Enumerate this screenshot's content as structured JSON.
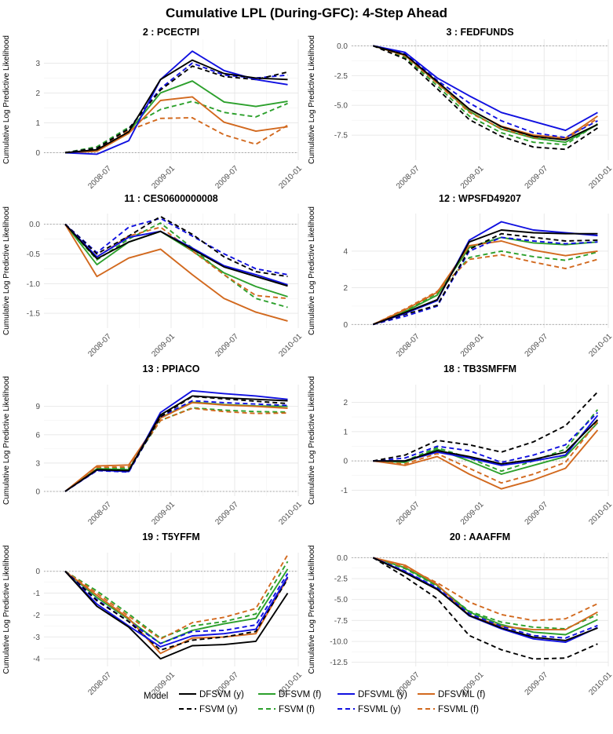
{
  "figure_title": "Cumulative LPL (During-GFC): 4-Step Ahead",
  "legend": {
    "title": "Model",
    "entries": [
      {
        "name": "DFSVM (y)",
        "color": "#000000",
        "dash": "solid"
      },
      {
        "name": "FSVM (y)",
        "color": "#000000",
        "dash": "dashed"
      },
      {
        "name": "DFSVM (f)",
        "color": "#2ca02c",
        "dash": "solid"
      },
      {
        "name": "FSVM (f)",
        "color": "#2ca02c",
        "dash": "dashed"
      },
      {
        "name": "DFSVML (y)",
        "color": "#1010e0",
        "dash": "solid"
      },
      {
        "name": "FSVML (y)",
        "color": "#1010e0",
        "dash": "dashed"
      },
      {
        "name": "DFSVML (f)",
        "color": "#d2691e",
        "dash": "solid"
      },
      {
        "name": "FSVML (f)",
        "color": "#d2691e",
        "dash": "dashed"
      }
    ]
  },
  "chart_data": [
    {
      "type": "line",
      "title": "2 : PCECTPI",
      "ylabel": "Cumulative Log Predictive Likelihood",
      "xlabel": "",
      "x": [
        "2008-03",
        "2008-06",
        "2008-09",
        "2008-12",
        "2009-03",
        "2009-06",
        "2009-09",
        "2009-12"
      ],
      "xticks": [
        "2008-07",
        "2009-01",
        "2009-07",
        "2010-01"
      ],
      "ylim": [
        -0.25,
        3.8
      ],
      "yticks": [
        0,
        1,
        2,
        3
      ],
      "series": [
        {
          "name": "DFSVM (y)",
          "values": [
            0,
            0.1,
            0.7,
            2.45,
            3.1,
            2.65,
            2.5,
            2.45
          ]
        },
        {
          "name": "FSVM (y)",
          "values": [
            0,
            0.15,
            0.8,
            2.1,
            2.9,
            2.55,
            2.45,
            2.7
          ]
        },
        {
          "name": "DFSVM (f)",
          "values": [
            0,
            0.05,
            0.7,
            2.0,
            2.4,
            1.7,
            1.55,
            1.72
          ]
        },
        {
          "name": "FSVM (f)",
          "values": [
            0,
            0.2,
            0.85,
            1.45,
            1.72,
            1.35,
            1.2,
            1.65
          ]
        },
        {
          "name": "DFSVML (y)",
          "values": [
            0,
            -0.05,
            0.4,
            2.45,
            3.4,
            2.75,
            2.45,
            2.28
          ]
        },
        {
          "name": "FSVML (y)",
          "values": [
            0,
            0.15,
            0.8,
            2.15,
            3.0,
            2.6,
            2.5,
            2.6
          ]
        },
        {
          "name": "DFSVML (f)",
          "values": [
            0,
            0.05,
            0.65,
            1.75,
            1.87,
            1.02,
            0.72,
            0.87
          ]
        },
        {
          "name": "FSVML (f)",
          "values": [
            0,
            0.15,
            0.75,
            1.15,
            1.17,
            0.6,
            0.28,
            0.92
          ]
        }
      ]
    },
    {
      "type": "line",
      "title": "3 : FEDFUNDS",
      "ylabel": "Cumulative Log Predictive Likelihood",
      "xlabel": "",
      "x": [
        "2008-03",
        "2008-06",
        "2008-09",
        "2008-12",
        "2009-03",
        "2009-06",
        "2009-09",
        "2009-12"
      ],
      "xticks": [
        "2008-07",
        "2009-01",
        "2009-07",
        "2010-01"
      ],
      "ylim": [
        -9.6,
        0.55
      ],
      "yticks": [
        0.0,
        -2.5,
        -5.0,
        -7.5
      ],
      "series": [
        {
          "name": "DFSVM (y)",
          "values": [
            0,
            -0.75,
            -3.0,
            -5.3,
            -6.8,
            -7.6,
            -7.9,
            -6.6
          ]
        },
        {
          "name": "FSVM (y)",
          "values": [
            0,
            -1.1,
            -3.6,
            -6.2,
            -7.6,
            -8.5,
            -8.7,
            -6.9
          ]
        },
        {
          "name": "DFSVM (f)",
          "values": [
            0,
            -0.8,
            -3.1,
            -5.5,
            -7.0,
            -7.75,
            -8.1,
            -6.6
          ]
        },
        {
          "name": "FSVM (f)",
          "values": [
            0,
            -0.95,
            -3.35,
            -5.9,
            -7.3,
            -8.1,
            -8.3,
            -6.55
          ]
        },
        {
          "name": "DFSVML (y)",
          "values": [
            0,
            -0.55,
            -2.7,
            -4.2,
            -5.6,
            -6.35,
            -7.1,
            -5.6
          ]
        },
        {
          "name": "FSVML (y)",
          "values": [
            0,
            -0.65,
            -2.9,
            -4.8,
            -6.3,
            -7.3,
            -7.7,
            -6.3
          ]
        },
        {
          "name": "DFSVML (f)",
          "values": [
            0,
            -0.8,
            -3.05,
            -5.35,
            -6.75,
            -7.5,
            -7.75,
            -5.9
          ]
        },
        {
          "name": "FSVML (f)",
          "values": [
            0,
            -0.85,
            -3.15,
            -5.6,
            -6.95,
            -7.7,
            -7.85,
            -6.1
          ]
        }
      ]
    },
    {
      "type": "line",
      "title": "11 : CES0600000008",
      "ylabel": "Cumulative Log Predictive Likelihood",
      "xlabel": "",
      "x": [
        "2008-03",
        "2008-06",
        "2008-09",
        "2008-12",
        "2009-03",
        "2009-06",
        "2009-09",
        "2009-12"
      ],
      "xticks": [
        "2008-07",
        "2009-01",
        "2009-07",
        "2010-01"
      ],
      "ylim": [
        -1.75,
        0.18
      ],
      "yticks": [
        0.0,
        -0.5,
        -1.0,
        -1.5
      ],
      "series": [
        {
          "name": "DFSVM (y)",
          "values": [
            0,
            -0.58,
            -0.3,
            -0.12,
            -0.42,
            -0.72,
            -0.88,
            -1.04
          ]
        },
        {
          "name": "FSVM (y)",
          "values": [
            0,
            -0.5,
            -0.2,
            0.13,
            -0.17,
            -0.55,
            -0.8,
            -0.88
          ]
        },
        {
          "name": "DFSVM (f)",
          "values": [
            0,
            -0.68,
            -0.3,
            -0.12,
            -0.45,
            -0.82,
            -1.05,
            -1.22
          ]
        },
        {
          "name": "FSVM (f)",
          "values": [
            0,
            -0.6,
            -0.25,
            0.02,
            -0.4,
            -0.85,
            -1.25,
            -1.4
          ]
        },
        {
          "name": "DFSVML (y)",
          "values": [
            0,
            -0.55,
            -0.22,
            -0.12,
            -0.4,
            -0.7,
            -0.85,
            -1.02
          ]
        },
        {
          "name": "FSVML (y)",
          "values": [
            0,
            -0.48,
            -0.05,
            0.1,
            -0.2,
            -0.5,
            -0.75,
            -0.85
          ]
        },
        {
          "name": "DFSVML (f)",
          "values": [
            0,
            -0.88,
            -0.57,
            -0.42,
            -0.85,
            -1.25,
            -1.48,
            -1.63
          ]
        },
        {
          "name": "FSVML (f)",
          "values": [
            0,
            -0.55,
            -0.2,
            -0.05,
            -0.45,
            -0.85,
            -1.2,
            -1.25
          ]
        }
      ]
    },
    {
      "type": "line",
      "title": "12 : WPSFD49207",
      "ylabel": "Cumulative Log Predictive Likelihood",
      "xlabel": "",
      "x": [
        "2008-03",
        "2008-06",
        "2008-09",
        "2008-12",
        "2009-03",
        "2009-06",
        "2009-09",
        "2009-12"
      ],
      "xticks": [
        "2008-07",
        "2009-01",
        "2009-07",
        "2010-01"
      ],
      "ylim": [
        -0.2,
        6.05
      ],
      "yticks": [
        0,
        2,
        4
      ],
      "series": [
        {
          "name": "DFSVM (y)",
          "values": [
            0,
            0.65,
            1.35,
            4.5,
            5.15,
            5.0,
            4.95,
            4.95
          ]
        },
        {
          "name": "FSVM (y)",
          "values": [
            0,
            0.55,
            1.05,
            4.1,
            4.95,
            4.75,
            4.55,
            4.6
          ]
        },
        {
          "name": "DFSVM (f)",
          "values": [
            0,
            0.7,
            1.6,
            4.2,
            4.75,
            4.45,
            4.35,
            4.5
          ]
        },
        {
          "name": "FSVM (f)",
          "values": [
            0,
            0.75,
            1.7,
            3.65,
            4.0,
            3.7,
            3.5,
            3.95
          ]
        },
        {
          "name": "DFSVML (y)",
          "values": [
            0,
            0.6,
            1.3,
            4.6,
            5.6,
            5.15,
            5.0,
            4.85
          ]
        },
        {
          "name": "FSVML (y)",
          "values": [
            0,
            0.45,
            1.0,
            4.0,
            4.75,
            4.55,
            4.4,
            4.5
          ]
        },
        {
          "name": "DFSVML (f)",
          "values": [
            0,
            0.8,
            1.75,
            4.3,
            4.55,
            4.05,
            3.75,
            4.0
          ]
        },
        {
          "name": "FSVML (f)",
          "values": [
            0,
            0.85,
            1.8,
            3.55,
            3.8,
            3.4,
            3.05,
            3.55
          ]
        }
      ]
    },
    {
      "type": "line",
      "title": "13 : PPIACO",
      "ylabel": "Cumulative Log Predictive Likelihood",
      "xlabel": "",
      "x": [
        "2008-03",
        "2008-06",
        "2008-09",
        "2008-12",
        "2009-03",
        "2009-06",
        "2009-09",
        "2009-12"
      ],
      "xticks": [
        "2008-07",
        "2009-01",
        "2009-07",
        "2010-01"
      ],
      "ylim": [
        -0.5,
        11.3
      ],
      "yticks": [
        0,
        3,
        6,
        9
      ],
      "series": [
        {
          "name": "DFSVM (y)",
          "values": [
            0,
            2.3,
            2.2,
            8.1,
            10.1,
            9.9,
            9.75,
            9.6
          ]
        },
        {
          "name": "FSVM (y)",
          "values": [
            0,
            2.25,
            2.15,
            7.9,
            10.05,
            9.8,
            9.55,
            9.3
          ]
        },
        {
          "name": "DFSVM (f)",
          "values": [
            0,
            2.4,
            2.3,
            7.8,
            9.45,
            9.2,
            9.05,
            9.0
          ]
        },
        {
          "name": "FSVM (f)",
          "values": [
            0,
            2.5,
            2.45,
            7.5,
            8.85,
            8.6,
            8.45,
            8.4
          ]
        },
        {
          "name": "DFSVML (y)",
          "values": [
            0,
            2.25,
            2.1,
            8.35,
            10.65,
            10.35,
            10.1,
            9.75
          ]
        },
        {
          "name": "FSVML (y)",
          "values": [
            0,
            2.2,
            2.05,
            7.9,
            9.6,
            9.4,
            9.25,
            9.1
          ]
        },
        {
          "name": "DFSVML (f)",
          "values": [
            0,
            2.7,
            2.8,
            7.75,
            9.4,
            9.15,
            9.0,
            8.8
          ]
        },
        {
          "name": "FSVML (f)",
          "values": [
            0,
            2.55,
            2.6,
            7.5,
            8.8,
            8.45,
            8.25,
            8.3
          ]
        }
      ]
    },
    {
      "type": "line",
      "title": "18 : TB3SMFFM",
      "ylabel": "Cumulative Log Predictive Likelihood",
      "xlabel": "",
      "x": [
        "2008-03",
        "2008-06",
        "2008-09",
        "2008-12",
        "2009-03",
        "2009-06",
        "2009-09",
        "2009-12"
      ],
      "xticks": [
        "2008-07",
        "2009-01",
        "2009-07",
        "2010-01"
      ],
      "ylim": [
        -1.2,
        2.6
      ],
      "yticks": [
        2,
        1,
        0,
        -1
      ],
      "series": [
        {
          "name": "DFSVM (y)",
          "values": [
            0,
            0.0,
            0.35,
            0.15,
            -0.1,
            0.05,
            0.3,
            1.4
          ]
        },
        {
          "name": "FSVM (y)",
          "values": [
            0,
            0.2,
            0.7,
            0.55,
            0.3,
            0.65,
            1.2,
            2.35
          ]
        },
        {
          "name": "DFSVM (f)",
          "values": [
            0,
            -0.05,
            0.4,
            0.0,
            -0.45,
            -0.15,
            0.15,
            1.3
          ]
        },
        {
          "name": "FSVM (f)",
          "values": [
            0,
            0.0,
            0.45,
            0.1,
            -0.35,
            0.0,
            0.4,
            1.75
          ]
        },
        {
          "name": "DFSVML (y)",
          "values": [
            0,
            0.0,
            0.3,
            0.1,
            -0.15,
            0.0,
            0.2,
            1.55
          ]
        },
        {
          "name": "FSVML (y)",
          "values": [
            0,
            0.1,
            0.5,
            0.35,
            -0.05,
            0.2,
            0.55,
            1.65
          ]
        },
        {
          "name": "DFSVML (f)",
          "values": [
            0,
            -0.15,
            0.15,
            -0.45,
            -0.95,
            -0.65,
            -0.25,
            1.05
          ]
        },
        {
          "name": "FSVML (f)",
          "values": [
            0,
            -0.1,
            0.25,
            -0.25,
            -0.75,
            -0.45,
            -0.05,
            1.35
          ]
        }
      ]
    },
    {
      "type": "line",
      "title": "19 : T5YFFM",
      "ylabel": "Cumulative Log Predictive Likelihood",
      "xlabel": "",
      "x": [
        "2008-03",
        "2008-06",
        "2008-09",
        "2008-12",
        "2009-03",
        "2009-06",
        "2009-09",
        "2009-12"
      ],
      "xticks": [
        "2008-07",
        "2009-01",
        "2009-07",
        "2010-01"
      ],
      "ylim": [
        -4.35,
        0.85
      ],
      "yticks": [
        0,
        -1,
        -2,
        -3,
        -4
      ],
      "series": [
        {
          "name": "DFSVM (y)",
          "values": [
            0,
            -1.6,
            -2.55,
            -4.0,
            -3.4,
            -3.35,
            -3.2,
            -1.0
          ]
        },
        {
          "name": "FSVM (y)",
          "values": [
            0,
            -1.35,
            -2.3,
            -3.6,
            -3.15,
            -3.0,
            -2.75,
            -0.35
          ]
        },
        {
          "name": "DFSVM (f)",
          "values": [
            0,
            -1.2,
            -2.2,
            -3.3,
            -2.7,
            -2.4,
            -2.15,
            0.1
          ]
        },
        {
          "name": "FSVM (f)",
          "values": [
            0,
            -0.9,
            -1.95,
            -3.05,
            -2.5,
            -2.3,
            -1.95,
            0.45
          ]
        },
        {
          "name": "DFSVML (y)",
          "values": [
            0,
            -1.5,
            -2.5,
            -3.45,
            -2.95,
            -2.85,
            -2.65,
            -0.25
          ]
        },
        {
          "name": "FSVML (y)",
          "values": [
            0,
            -1.3,
            -2.3,
            -3.3,
            -2.75,
            -2.7,
            -2.45,
            -0.1
          ]
        },
        {
          "name": "DFSVML (f)",
          "values": [
            0,
            -1.1,
            -2.15,
            -3.75,
            -3.05,
            -3.0,
            -2.85,
            -0.3
          ]
        },
        {
          "name": "FSVML (f)",
          "values": [
            0,
            -1.0,
            -2.05,
            -3.1,
            -2.35,
            -2.1,
            -1.7,
            0.75
          ]
        }
      ]
    },
    {
      "type": "line",
      "title": "20 : AAAFFM",
      "ylabel": "Cumulative Log Predictive Likelihood",
      "xlabel": "",
      "x": [
        "2008-03",
        "2008-06",
        "2008-09",
        "2008-12",
        "2009-03",
        "2009-06",
        "2009-09",
        "2009-12"
      ],
      "xticks": [
        "2008-07",
        "2009-01",
        "2009-07",
        "2010-01"
      ],
      "ylim": [
        -13.0,
        0.6
      ],
      "yticks": [
        0.0,
        -2.5,
        -5.0,
        -7.5,
        -10.0,
        -12.5
      ],
      "series": [
        {
          "name": "DFSVM (y)",
          "values": [
            0,
            -1.8,
            -3.8,
            -6.9,
            -8.4,
            -9.5,
            -9.9,
            -8.4
          ]
        },
        {
          "name": "FSVM (y)",
          "values": [
            0,
            -2.3,
            -4.9,
            -9.3,
            -11.0,
            -12.1,
            -12.0,
            -10.3
          ]
        },
        {
          "name": "DFSVM (f)",
          "values": [
            0,
            -1.2,
            -3.3,
            -6.5,
            -8.0,
            -8.9,
            -9.2,
            -7.4
          ]
        },
        {
          "name": "FSVM (f)",
          "values": [
            0,
            -1.3,
            -3.4,
            -6.4,
            -7.7,
            -8.3,
            -8.5,
            -6.8
          ]
        },
        {
          "name": "DFSVML (y)",
          "values": [
            0,
            -1.7,
            -3.7,
            -6.95,
            -8.5,
            -9.7,
            -10.1,
            -8.35
          ]
        },
        {
          "name": "FSVML (y)",
          "values": [
            0,
            -1.6,
            -3.6,
            -6.7,
            -8.2,
            -9.3,
            -9.6,
            -8.1
          ]
        },
        {
          "name": "DFSVML (f)",
          "values": [
            0,
            -0.9,
            -3.2,
            -6.9,
            -8.2,
            -8.6,
            -8.6,
            -6.5
          ]
        },
        {
          "name": "FSVML (f)",
          "values": [
            0,
            -1.1,
            -3.0,
            -5.3,
            -6.8,
            -7.5,
            -7.3,
            -5.5
          ]
        }
      ]
    }
  ]
}
